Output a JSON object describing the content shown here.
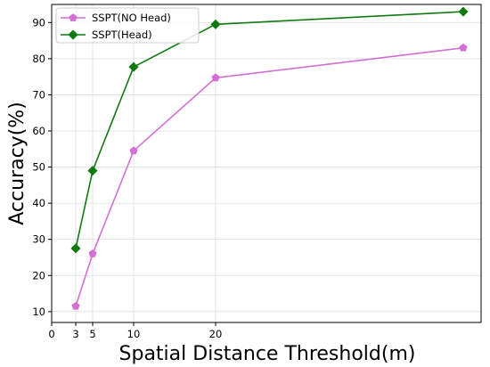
{
  "chart_data": {
    "type": "line",
    "xlabel": "Spatial Distance Threshold(m)",
    "ylabel": "Accuracy(%)",
    "xlim": [
      0,
      100
    ],
    "ylim": [
      7,
      95
    ],
    "x_ticks": [
      0,
      3,
      5,
      10,
      20
    ],
    "y_ticks": [
      10,
      20,
      30,
      40,
      50,
      60,
      70,
      80,
      90
    ],
    "grid": true,
    "legend_position": "top-left",
    "series": [
      {
        "name": "SSPT(NO Head)",
        "color": "#d46fd4",
        "marker": "pentagon",
        "x": [
          3,
          5,
          10,
          20,
          100
        ],
        "y": [
          11.5,
          26.0,
          54.5,
          74.7,
          83.0
        ]
      },
      {
        "name": "SSPT(Head)",
        "color": "#107a10",
        "marker": "diamond",
        "x": [
          3,
          5,
          10,
          20,
          100
        ],
        "y": [
          27.5,
          49.0,
          77.7,
          89.5,
          93.0
        ]
      }
    ]
  }
}
